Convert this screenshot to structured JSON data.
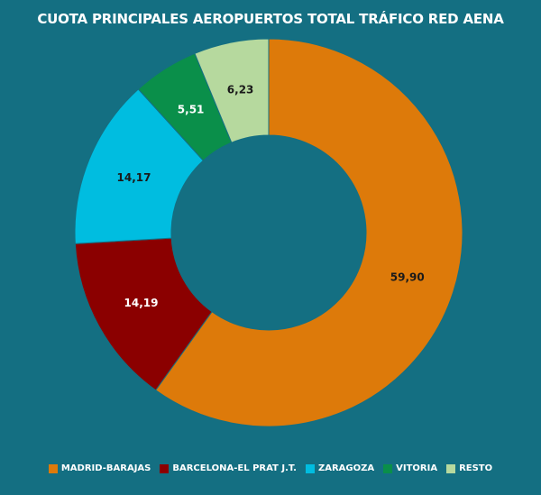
{
  "chart_data": {
    "type": "pie",
    "subtype": "donut",
    "title": "CUOTA PRINCIPALES AEROPUERTOS TOTAL TRÁFICO RED AENA",
    "categories": [
      "MADRID-BARAJAS",
      "BARCELONA-EL PRAT J.T.",
      "ZARAGOZA",
      "VITORIA",
      "RESTO"
    ],
    "values": [
      59.9,
      14.19,
      14.17,
      5.51,
      6.23
    ],
    "labels": [
      "59,90",
      "14,19",
      "14,17",
      "5,51",
      "6,23"
    ],
    "colors": [
      "#dd7a0a",
      "#8b0000",
      "#00bde0",
      "#0a8f4a",
      "#b6d99e"
    ],
    "label_colors": [
      "#1a1a1a",
      "#ffffff",
      "#1a1a1a",
      "#ffffff",
      "#1a1a1a"
    ],
    "legend_position": "bottom"
  }
}
